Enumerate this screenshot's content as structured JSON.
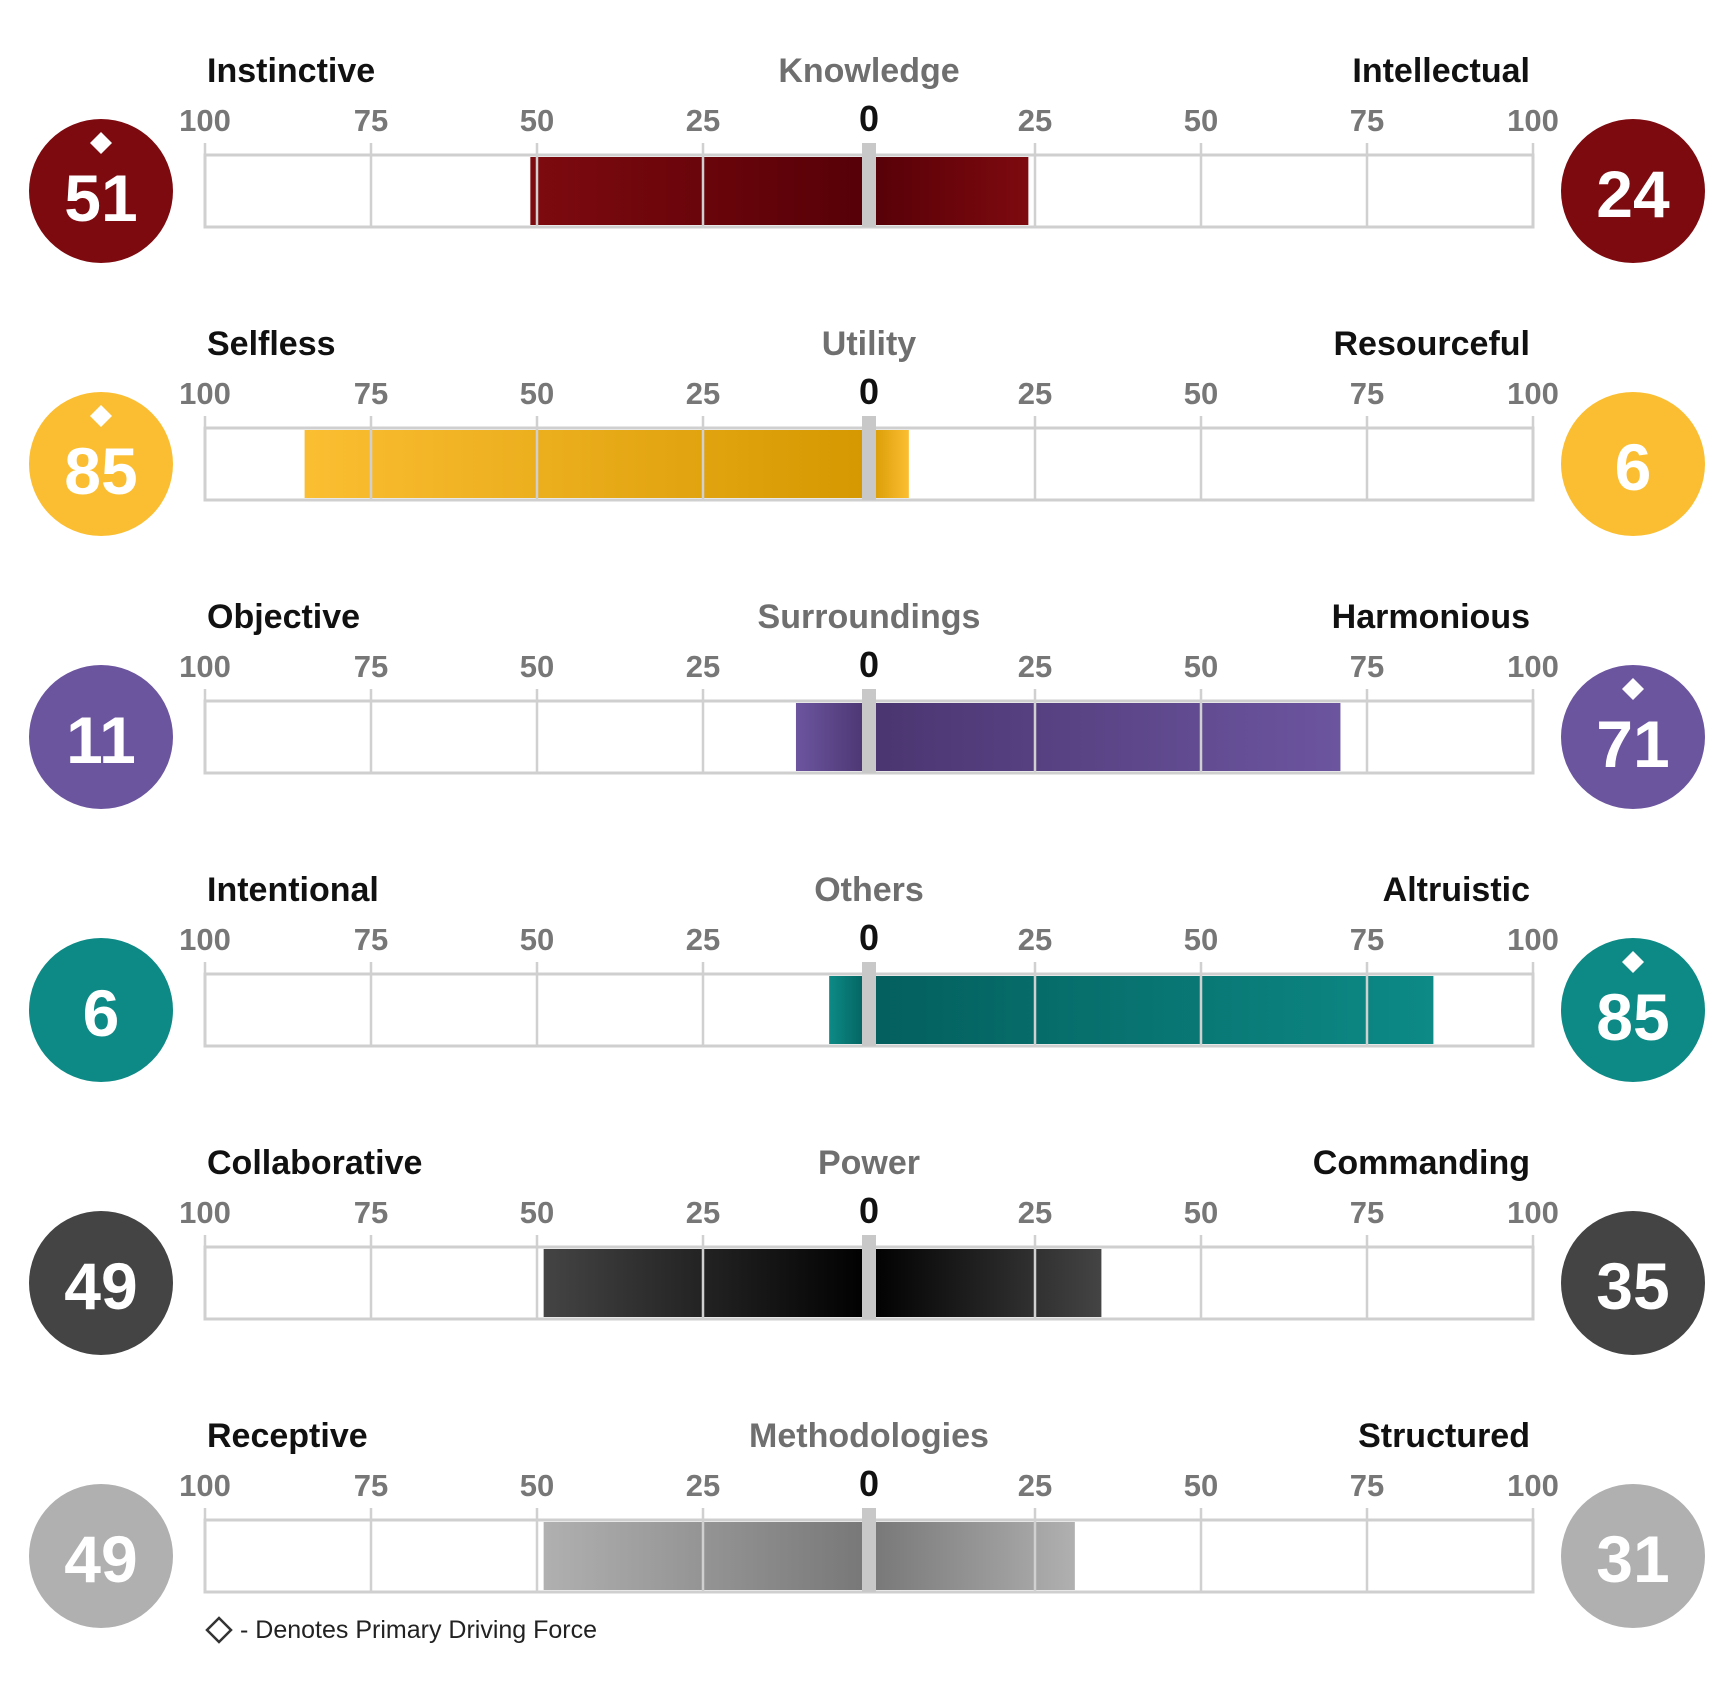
{
  "chart_data": {
    "type": "bar",
    "axis_ticks": [
      "100",
      "75",
      "50",
      "25",
      "0",
      "25",
      "50",
      "75",
      "100"
    ],
    "scale_max": 100,
    "rows": [
      {
        "name": "Knowledge",
        "left_label": "Instinctive",
        "right_label": "Intellectual",
        "left_value": 51,
        "right_value": 24,
        "primary": "left",
        "color": "#7d0a0f",
        "color_dark": "#560007"
      },
      {
        "name": "Utility",
        "left_label": "Selfless",
        "right_label": "Resourceful",
        "left_value": 85,
        "right_value": 6,
        "primary": "left",
        "color": "#fbbe32",
        "color_dark": "#d69800"
      },
      {
        "name": "Surroundings",
        "left_label": "Objective",
        "right_label": "Harmonious",
        "left_value": 11,
        "right_value": 71,
        "primary": "right",
        "color": "#6c559f",
        "color_dark": "#4b3570"
      },
      {
        "name": "Others",
        "left_label": "Intentional",
        "right_label": "Altruistic",
        "left_value": 6,
        "right_value": 85,
        "primary": "right",
        "color": "#0d8a86",
        "color_dark": "#035f5d"
      },
      {
        "name": "Power",
        "left_label": "Collaborative",
        "right_label": "Commanding",
        "left_value": 49,
        "right_value": 35,
        "primary": "none",
        "color": "#444444",
        "color_dark": "#000000"
      },
      {
        "name": "Methodologies",
        "left_label": "Receptive",
        "right_label": "Structured",
        "left_value": 49,
        "right_value": 31,
        "primary": "none",
        "color": "#b0b0b0",
        "color_dark": "#777777"
      }
    ],
    "legend_text": "- Denotes Primary Driving Force",
    "legend_placement": "bottom-left"
  }
}
